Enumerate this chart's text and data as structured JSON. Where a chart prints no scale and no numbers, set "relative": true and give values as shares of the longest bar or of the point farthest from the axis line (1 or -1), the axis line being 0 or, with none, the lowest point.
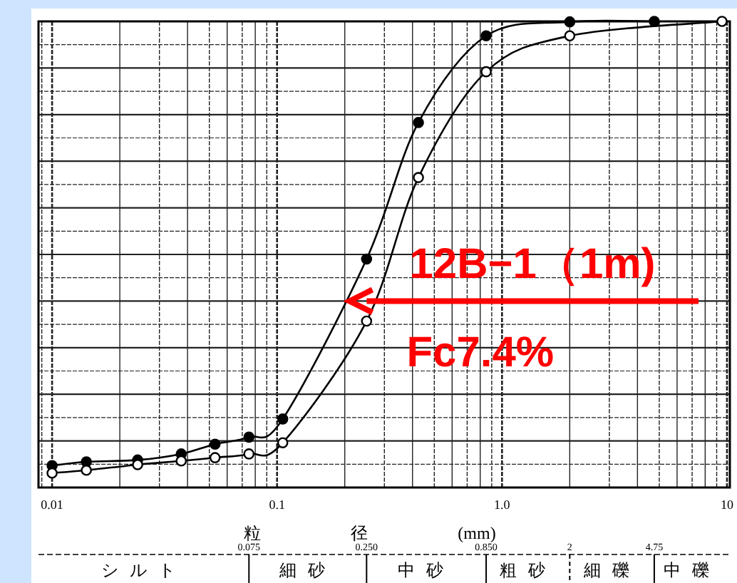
{
  "chart_data": {
    "type": "line",
    "relative": true,
    "log": "x",
    "xlabel": "粒 径 (mm)",
    "xlim": [
      0.0087,
      10.3
    ],
    "xticks": [
      0.01,
      0.1,
      {
        "value": 1,
        "label": "1.0"
      },
      10
    ],
    "grid": true,
    "marker": "circle",
    "line_style": "solid",
    "series": [
      {
        "color": "#000000",
        "x": [
          0.01,
          0.0142,
          0.024,
          0.0375,
          0.053,
          0.075,
          0.106,
          0.25,
          0.425,
          0.85,
          2,
          4.75
        ],
        "values": [
          0.047,
          0.055,
          0.059,
          0.072,
          0.093,
          0.108,
          0.147,
          0.49,
          0.783,
          0.969,
          0.999,
          1
        ]
      },
      {
        "color": "#000000",
        "x": [
          0.01,
          0.0142,
          0.024,
          0.0375,
          0.053,
          0.075,
          0.106,
          0.25,
          0.425,
          0.85,
          2,
          9.5
        ],
        "values": [
          0.031,
          0.037,
          0.049,
          0.057,
          0.064,
          0.072,
          0.096,
          0.357,
          0.665,
          0.892,
          0.969,
          1
        ]
      }
    ],
    "annotations": [
      {
        "text": "12B−1（1m)",
        "x": 0.21,
        "y": 0.4
      },
      "Fc7.4%",
      "0.075",
      "0.250",
      "0.850",
      "2",
      "4.75",
      "シルト",
      "細砂",
      "中砂",
      "粗砂",
      "細礫",
      "中礫"
    ]
  }
}
